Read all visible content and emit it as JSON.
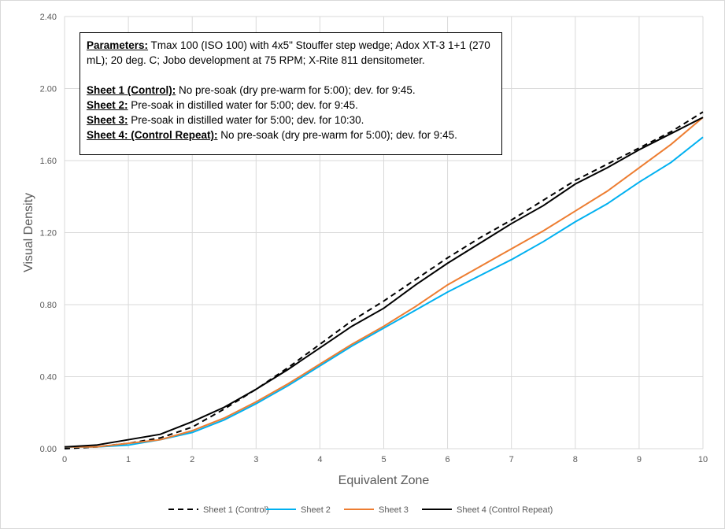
{
  "chart_data": {
    "type": "line",
    "title": "",
    "xlabel": "Equivalent Zone",
    "ylabel": "Visual Density",
    "xlim": [
      0,
      10
    ],
    "ylim": [
      0,
      2.4
    ],
    "xticks": [
      "0",
      "1",
      "2",
      "3",
      "4",
      "5",
      "6",
      "7",
      "8",
      "9",
      "10"
    ],
    "yticks": [
      "0.00",
      "0.40",
      "0.80",
      "1.20",
      "1.60",
      "2.00",
      "2.40"
    ],
    "grid": true,
    "legend_position": "bottom",
    "x": [
      0,
      0.5,
      1,
      1.5,
      2,
      2.5,
      3,
      3.5,
      4,
      4.5,
      5,
      5.5,
      6,
      6.5,
      7,
      7.5,
      8,
      8.5,
      9,
      9.5,
      10
    ],
    "series": [
      {
        "name": "Sheet 1 (Control)",
        "color": "#000000",
        "dashed": true,
        "values": [
          0.0,
          0.01,
          0.03,
          0.06,
          0.12,
          0.22,
          0.33,
          0.45,
          0.58,
          0.71,
          0.82,
          0.94,
          1.06,
          1.17,
          1.27,
          1.38,
          1.49,
          1.58,
          1.67,
          1.76,
          1.87
        ]
      },
      {
        "name": "Sheet 2",
        "color": "#00b0f0",
        "dashed": false,
        "values": [
          0.01,
          0.01,
          0.02,
          0.05,
          0.09,
          0.16,
          0.25,
          0.35,
          0.46,
          0.57,
          0.67,
          0.77,
          0.87,
          0.96,
          1.05,
          1.15,
          1.26,
          1.36,
          1.48,
          1.59,
          1.73
        ]
      },
      {
        "name": "Sheet 3",
        "color": "#ed7d31",
        "dashed": false,
        "values": [
          0.01,
          0.01,
          0.03,
          0.05,
          0.1,
          0.17,
          0.26,
          0.36,
          0.47,
          0.58,
          0.68,
          0.79,
          0.91,
          1.01,
          1.11,
          1.21,
          1.32,
          1.43,
          1.56,
          1.69,
          1.84
        ]
      },
      {
        "name": "Sheet 4 (Control Repeat)",
        "color": "#000000",
        "dashed": false,
        "values": [
          0.01,
          0.02,
          0.05,
          0.08,
          0.15,
          0.23,
          0.33,
          0.44,
          0.56,
          0.68,
          0.78,
          0.91,
          1.03,
          1.14,
          1.25,
          1.35,
          1.47,
          1.56,
          1.66,
          1.75,
          1.84
        ]
      }
    ],
    "annotation": {
      "params_label": "Parameters:",
      "params_text": " Tmax 100 (ISO 100) with 4x5\" Stouffer step wedge; Adox XT-3 1+1 (270 mL); 20 deg. C; Jobo development at 75 RPM; X-Rite 811 densitometer.",
      "lines": [
        {
          "label": "Sheet 1 (Control):",
          "text": " No pre-soak (dry pre-warm for 5:00); dev. for 9:45."
        },
        {
          "label": "Sheet 2:",
          "text": " Pre-soak in distilled water for 5:00; dev. for 9:45."
        },
        {
          "label": "Sheet 3:",
          "text": " Pre-soak in distilled water for 5:00; dev. for 10:30."
        },
        {
          "label": "Sheet 4: (Control Repeat):",
          "text": " No pre-soak (dry pre-warm for 5:00); dev. for 9:45."
        }
      ]
    }
  }
}
